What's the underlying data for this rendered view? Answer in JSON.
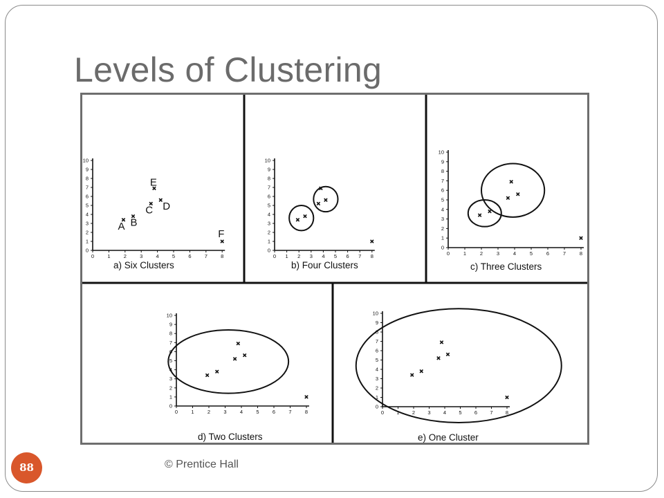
{
  "slide": {
    "title": "Levels of Clustering",
    "footer": "© Prentice Hall",
    "number": "88",
    "accent_color": "#d9572b",
    "title_color": "#6b6b6b"
  },
  "points": [
    {
      "label": "A",
      "x": 1.9,
      "y": 3.4
    },
    {
      "label": "B",
      "x": 2.5,
      "y": 3.8
    },
    {
      "label": "C",
      "x": 3.6,
      "y": 5.2
    },
    {
      "label": "D",
      "x": 4.2,
      "y": 5.6
    },
    {
      "label": "E",
      "x": 3.8,
      "y": 6.9
    },
    {
      "label": "F",
      "x": 8.0,
      "y": 1.0
    }
  ],
  "axes": {
    "x_ticks": [
      "0",
      "1",
      "2",
      "3",
      "4",
      "5",
      "6",
      "7",
      "8"
    ],
    "y_ticks": [
      "0",
      "1",
      "2",
      "3",
      "4",
      "5",
      "6",
      "7",
      "8",
      "9",
      "10"
    ]
  },
  "panels": [
    {
      "caption": "a)  Six Clusters",
      "show_labels": true,
      "circles": []
    },
    {
      "caption": "b)  Four Clusters",
      "show_labels": false,
      "circles": [
        {
          "cx": 2.2,
          "cy": 3.6,
          "rx": 1.0,
          "ry": 1.4
        },
        {
          "cx": 4.2,
          "cy": 5.7,
          "rx": 1.0,
          "ry": 1.4
        }
      ]
    },
    {
      "caption": "c)  Three Clusters",
      "show_labels": false,
      "circles": [
        {
          "cx": 2.2,
          "cy": 3.6,
          "rx": 1.0,
          "ry": 1.4
        },
        {
          "cx": 3.9,
          "cy": 6.0,
          "rx": 1.9,
          "ry": 2.8
        }
      ]
    },
    {
      "caption": "d)  Two Clusters",
      "show_labels": false,
      "circles": [
        {
          "cx": 3.2,
          "cy": 4.9,
          "rx": 3.7,
          "ry": 3.5
        }
      ]
    },
    {
      "caption": "e)  One Cluster",
      "show_labels": false,
      "circles": [
        {
          "cx": 4.9,
          "cy": 4.4,
          "rx": 6.6,
          "ry": 6.1
        }
      ]
    }
  ]
}
